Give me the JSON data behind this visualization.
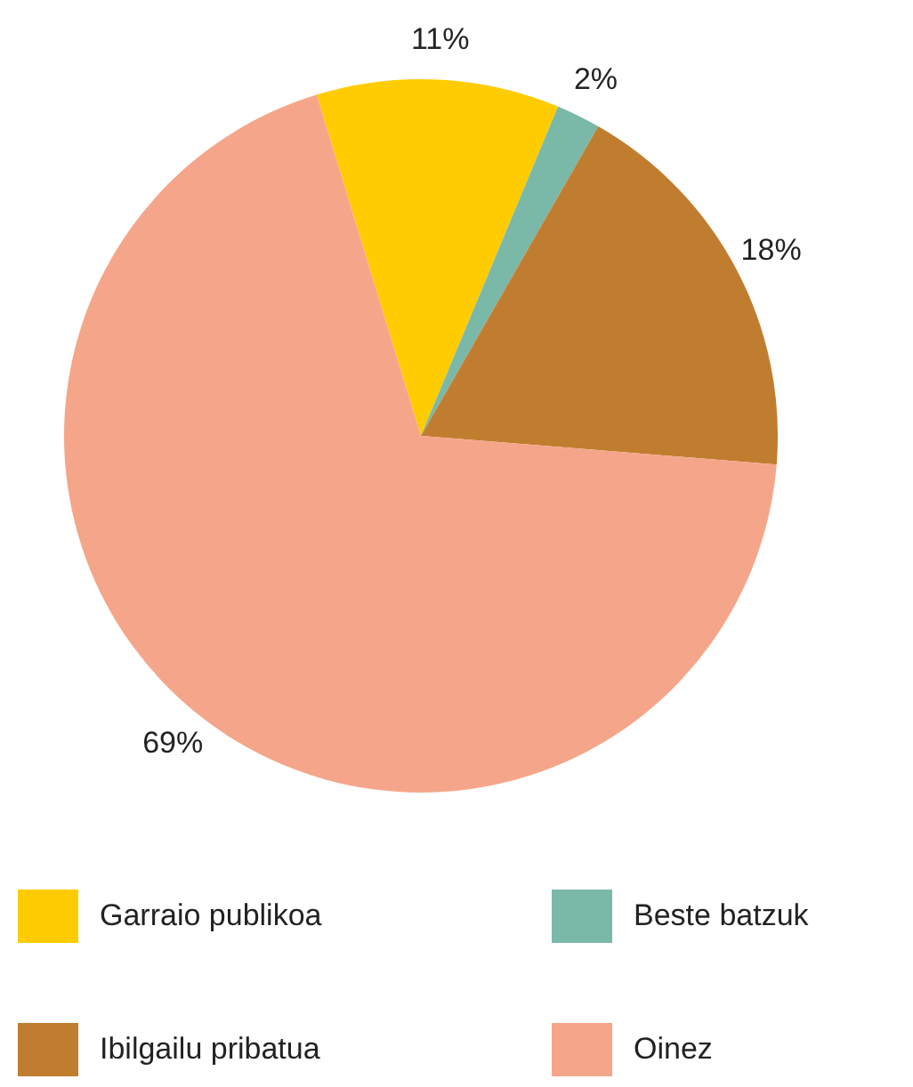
{
  "chart_data": {
    "type": "pie",
    "categories": [
      "Garraio publikoa",
      "Beste batzuk",
      "Ibilgailu pribatua",
      "Oinez"
    ],
    "values": [
      11,
      2,
      18,
      69
    ],
    "colors": [
      "#fecc00",
      "#7ab8a8",
      "#c17d2f",
      "#f5a68a"
    ],
    "value_labels": [
      "11%",
      "2%",
      "18%",
      "69%"
    ],
    "legend": "bottom"
  }
}
